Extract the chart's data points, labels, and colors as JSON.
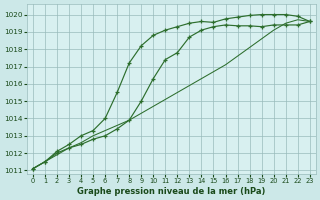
{
  "xlabel": "Graphe pression niveau de la mer (hPa)",
  "background_color": "#cce8e8",
  "plot_bg_color": "#d8f0f0",
  "grid_color": "#99bbbb",
  "line_color": "#2d6e2d",
  "xlim_min": -0.5,
  "xlim_max": 23.5,
  "ylim_min": 1010.8,
  "ylim_max": 1020.6,
  "yticks": [
    1011,
    1012,
    1013,
    1014,
    1015,
    1016,
    1017,
    1018,
    1019,
    1020
  ],
  "xticks": [
    0,
    1,
    2,
    3,
    4,
    5,
    6,
    7,
    8,
    9,
    10,
    11,
    12,
    13,
    14,
    15,
    16,
    17,
    18,
    19,
    20,
    21,
    22,
    23
  ],
  "line1_x": [
    0,
    1,
    2,
    3,
    4,
    5,
    6,
    7,
    8,
    9,
    10,
    11,
    12,
    13,
    14,
    15,
    16,
    17,
    18,
    19,
    20,
    21,
    22,
    23
  ],
  "line1_y": [
    1011.1,
    1011.5,
    1011.9,
    1012.3,
    1012.6,
    1013.0,
    1013.3,
    1013.6,
    1013.9,
    1014.3,
    1014.7,
    1015.1,
    1015.5,
    1015.9,
    1016.3,
    1016.7,
    1017.1,
    1017.6,
    1018.1,
    1018.6,
    1019.1,
    1019.5,
    1019.7,
    1019.6
  ],
  "line2_x": [
    0,
    1,
    2,
    3,
    4,
    5,
    6,
    7,
    8,
    9,
    10,
    11,
    12,
    13,
    14,
    15,
    16,
    17,
    18,
    19,
    20,
    21,
    22,
    23
  ],
  "line2_y": [
    1011.1,
    1011.5,
    1012.0,
    1012.3,
    1012.5,
    1012.8,
    1013.0,
    1013.4,
    1013.9,
    1015.0,
    1016.3,
    1017.4,
    1017.8,
    1018.7,
    1019.1,
    1019.3,
    1019.4,
    1019.35,
    1019.35,
    1019.3,
    1019.4,
    1019.4,
    1019.4,
    1019.6
  ],
  "line3_x": [
    0,
    1,
    2,
    3,
    4,
    5,
    6,
    7,
    8,
    9,
    10,
    11,
    12,
    13,
    14,
    15,
    16,
    17,
    18,
    19,
    20,
    21,
    22,
    23
  ],
  "line3_y": [
    1011.1,
    1011.5,
    1012.1,
    1012.5,
    1013.0,
    1013.3,
    1014.0,
    1015.5,
    1017.2,
    1018.2,
    1018.8,
    1019.1,
    1019.3,
    1019.5,
    1019.6,
    1019.55,
    1019.75,
    1019.85,
    1019.95,
    1020.0,
    1020.0,
    1020.0,
    1019.9,
    1019.6
  ]
}
